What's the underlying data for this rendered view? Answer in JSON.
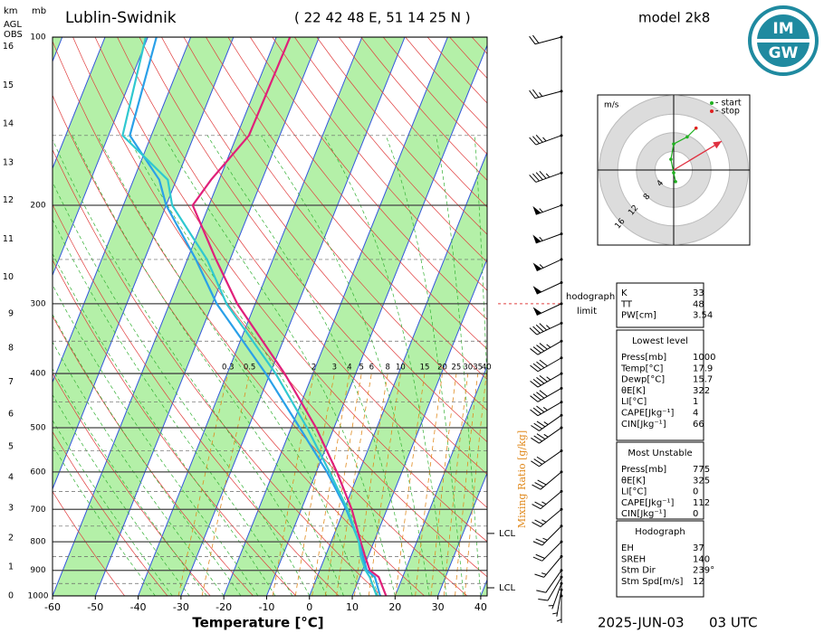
{
  "header": {
    "station": "Lublin-Swidnik",
    "coords": "( 22 42 48 E, 51 14 25 N )",
    "model": "model 2k8",
    "valid_date": "2025-JUN-03",
    "valid_time": "03 UTC",
    "logo_top": "IM",
    "logo_bottom": "GW"
  },
  "chart_data": {
    "type": "skewt",
    "xlabel": "Temperature [°C]",
    "xlim": [
      -60,
      41.5
    ],
    "xticks": [
      -60,
      -50,
      -40,
      -30,
      -20,
      -10,
      0,
      10,
      20,
      30,
      40
    ],
    "ylim": [
      1000,
      100
    ],
    "yticks": [
      1000,
      900,
      800,
      700,
      600,
      500,
      400,
      300,
      200,
      100
    ],
    "log_y": true,
    "pressure_unit": "mb",
    "height_unit": "km",
    "height_ref_1": "AGL",
    "height_ref_2": "OBS",
    "km_ticks": [
      0,
      1,
      2,
      3,
      4,
      5,
      6,
      7,
      8,
      9,
      10,
      11,
      12,
      13,
      14,
      15,
      16
    ],
    "km_pressures": [
      1000,
      888,
      788,
      697,
      614,
      541,
      473,
      414,
      360,
      313,
      269,
      230,
      196,
      168,
      143,
      122,
      104
    ],
    "pressure": [
      1000,
      925,
      900,
      850,
      800,
      700,
      600,
      500,
      400,
      300,
      250,
      200,
      180,
      150,
      100
    ],
    "series": [
      {
        "color": "#e0207a",
        "values": [
          17.9,
          14.4,
          11.7,
          9.3,
          6.9,
          1.8,
          -5.2,
          -14.2,
          -26.6,
          -44.2,
          -53.3,
          -63.8,
          -61.9,
          -57.2,
          -56.8
        ]
      },
      {
        "color": "#2aa0e8",
        "values": [
          16.5,
          13.5,
          11,
          8.8,
          6.5,
          0.5,
          -7.5,
          -18,
          -31,
          -49,
          -58,
          -70,
          -74,
          -85,
          -88
        ]
      },
      {
        "color": "#30c8d0",
        "values": [
          15.7,
          12.3,
          10.7,
          8.3,
          6.5,
          0.8,
          -6.9,
          -16.3,
          -28.7,
          -46.7,
          -55.4,
          -68.6,
          -72,
          -86.7,
          -90.5
        ]
      }
    ],
    "mixing_ratio": {
      "label": "Mixing Ratio [g/kg]",
      "color": "#e08a1e",
      "values": [
        0.3,
        0.5,
        2,
        3,
        4,
        5,
        6,
        8,
        10,
        15,
        20,
        25,
        30,
        35,
        40
      ]
    },
    "lcl": {
      "labels": [
        "LCL",
        "LCL"
      ],
      "pressures": [
        967,
        773
      ]
    },
    "hodograph_limit": {
      "lines": [
        "hodograph",
        "limit"
      ],
      "pressure": 300
    },
    "wind": {
      "pressures": [
        100,
        125,
        150,
        175,
        200,
        225,
        250,
        275,
        300,
        325,
        350,
        375,
        400,
        425,
        450,
        475,
        500,
        550,
        600,
        650,
        700,
        750,
        800,
        850,
        900,
        925,
        950,
        975,
        1000
      ],
      "directions": [
        255,
        255,
        250,
        250,
        250,
        250,
        245,
        245,
        245,
        245,
        240,
        240,
        240,
        240,
        240,
        235,
        235,
        235,
        230,
        230,
        230,
        225,
        225,
        220,
        215,
        210,
        200,
        190,
        180
      ],
      "speeds": [
        20,
        25,
        35,
        45,
        55,
        55,
        55,
        50,
        50,
        45,
        45,
        40,
        45,
        40,
        35,
        35,
        35,
        30,
        30,
        25,
        25,
        25,
        20,
        15,
        10,
        10,
        5,
        5,
        5
      ]
    }
  },
  "hodograph": {
    "unit": "m/s",
    "rings": [
      4,
      8,
      12,
      16
    ],
    "legend": [
      "- start",
      "- stop"
    ],
    "start_color": "#20b020",
    "stop_color": "#e02020",
    "arrow_color": "#e03040",
    "u": [
      0.4,
      0,
      -0.6,
      0,
      2.9,
      4.8
    ],
    "v": [
      -2.5,
      -0.6,
      2.3,
      5.6,
      7.1,
      9
    ]
  },
  "tables": [
    {
      "rows": [
        {
          "label": "K",
          "value": 33
        },
        {
          "label": "TT",
          "value": 48
        },
        {
          "label": "PW[cm]",
          "value": 3.54
        }
      ]
    },
    {
      "title": "Lowest level",
      "rows": [
        {
          "label": "Press[mb]",
          "value": 1000
        },
        {
          "label": "Temp[°C]",
          "value": 17.9
        },
        {
          "label": "Dewp[°C]",
          "value": 15.7
        },
        {
          "label": "θE[K]",
          "value": 322
        },
        {
          "label": "LI[°C]",
          "value": 1
        },
        {
          "label": "CAPE[Jkg⁻¹]",
          "value": 4
        },
        {
          "label": "CIN[Jkg⁻¹]",
          "value": 66
        }
      ]
    },
    {
      "title": "Most Unstable",
      "rows": [
        {
          "label": "Press[mb]",
          "value": 775
        },
        {
          "label": "θE[K]",
          "value": 325
        },
        {
          "label": "LI[°C]",
          "value": 0
        },
        {
          "label": "CAPE[Jkg⁻¹]",
          "value": 112
        },
        {
          "label": "CIN[Jkg⁻¹]",
          "value": 0
        }
      ]
    },
    {
      "title": "Hodograph",
      "rows": [
        {
          "label": "EH",
          "value": 37
        },
        {
          "label": "SREH",
          "value": 140
        },
        {
          "label": "Stm Dir",
          "value": 239,
          "value_label": "239°"
        },
        {
          "label": "Stm Spd[m/s]",
          "value": 12
        }
      ]
    }
  ]
}
